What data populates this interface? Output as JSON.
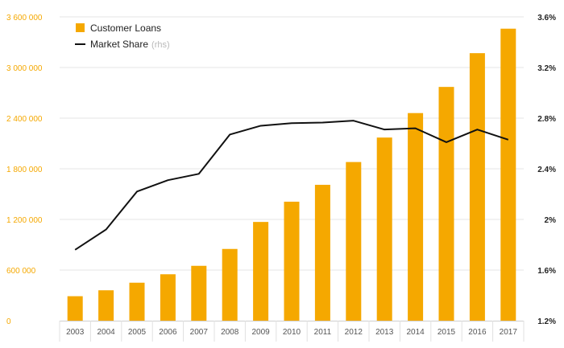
{
  "chart_data": {
    "type": "bar",
    "categories": [
      "2003",
      "2004",
      "2005",
      "2006",
      "2007",
      "2008",
      "2009",
      "2010",
      "2011",
      "2012",
      "2013",
      "2014",
      "2015",
      "2016",
      "2017"
    ],
    "series": [
      {
        "name": "Customer Loans",
        "kind": "bar",
        "axis": "left",
        "color": "#f5a800",
        "values": [
          290000,
          360000,
          450000,
          550000,
          650000,
          850000,
          1170000,
          1410000,
          1610000,
          1880000,
          2170000,
          2460000,
          2770000,
          3170000,
          3460000
        ]
      },
      {
        "name": "Market Share",
        "name_suffix": "(rhs)",
        "kind": "line",
        "axis": "right",
        "color": "#111111",
        "values": [
          1.76,
          1.92,
          2.22,
          2.31,
          2.36,
          2.67,
          2.74,
          2.76,
          2.765,
          2.78,
          2.71,
          2.72,
          2.61,
          2.71,
          2.63
        ]
      }
    ],
    "y_left": {
      "range": [
        0,
        3600000
      ],
      "ticks": [
        0,
        600000,
        1200000,
        1800000,
        2400000,
        3000000,
        3600000
      ],
      "tick_labels": [
        "0",
        "600 000",
        "1 200 000",
        "1 800 000",
        "2 400 000",
        "3 000 000",
        "3 600 000"
      ],
      "color": "#f5a800"
    },
    "y_right": {
      "range": [
        1.2,
        3.6
      ],
      "ticks": [
        1.2,
        1.6,
        2.0,
        2.4,
        2.8,
        3.2,
        3.6
      ],
      "tick_labels": [
        "1.2%",
        "1.6%",
        "2%",
        "2.4%",
        "2.8%",
        "3.2%",
        "3.6%"
      ],
      "color": "#222222"
    },
    "grid": true,
    "legend_position": "top-left"
  }
}
